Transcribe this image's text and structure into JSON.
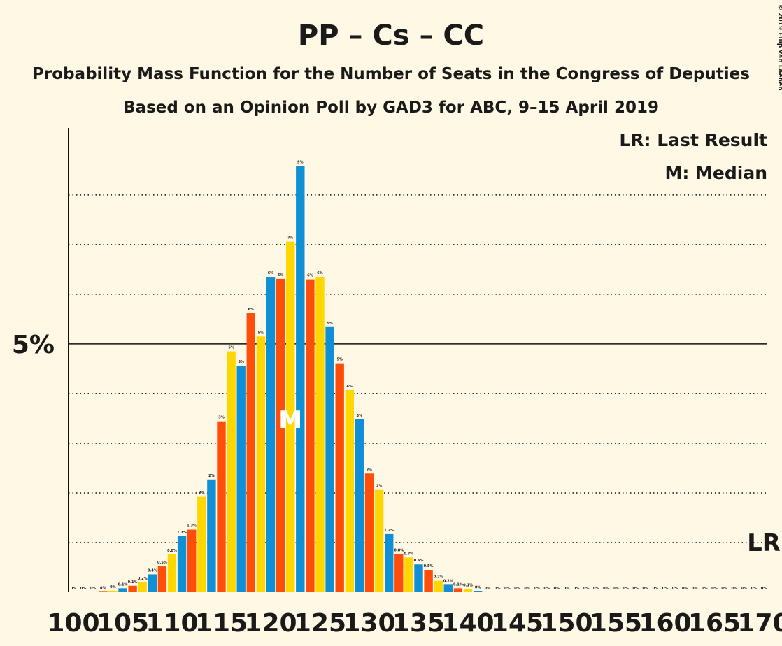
{
  "chart_data": {
    "type": "bar",
    "title": "PP – Cs – CC",
    "subtitle": "Probability Mass Function for the Number of Seats in the Congress of Deputies",
    "subtitle2": "Based on an Opinion Poll by GAD3 for ABC, 9–15 April 2019",
    "copyright": "© 2019 Filip van Laenen",
    "legend": [
      "LR: Last Result",
      "M: Median"
    ],
    "x": [
      100,
      101,
      102,
      103,
      104,
      105,
      106,
      107,
      108,
      109,
      110,
      111,
      112,
      113,
      114,
      115,
      116,
      117,
      118,
      119,
      120,
      121,
      122,
      123,
      124,
      125,
      126,
      127,
      128,
      129,
      130,
      131,
      132,
      133,
      134,
      135,
      136,
      137,
      138,
      139,
      140,
      141,
      142,
      143,
      144,
      145,
      146,
      147,
      148,
      149,
      150,
      151,
      152,
      153,
      154,
      155,
      156,
      157,
      158,
      159,
      160,
      161,
      162,
      163,
      164,
      165,
      166,
      167,
      168,
      169,
      170
    ],
    "values": [
      0,
      0,
      0,
      0.01,
      0.03,
      0.08,
      0.13,
      0.2,
      0.36,
      0.52,
      0.76,
      1.13,
      1.26,
      1.92,
      2.27,
      3.44,
      4.85,
      4.56,
      5.62,
      5.15,
      6.35,
      6.31,
      7.06,
      8.58,
      6.3,
      6.35,
      5.34,
      4.61,
      4.07,
      3.48,
      2.39,
      2.06,
      1.17,
      0.77,
      0.7,
      0.56,
      0.45,
      0.23,
      0.15,
      0.08,
      0.06,
      0.02,
      0,
      0,
      0,
      0,
      0,
      0,
      0,
      0,
      0,
      0,
      0,
      0,
      0,
      0,
      0,
      0,
      0,
      0,
      0,
      0,
      0,
      0,
      0,
      0,
      0,
      0,
      0,
      0,
      0
    ],
    "value_labels": [
      "0%",
      "0%",
      "0%",
      "0%",
      "0%",
      "0.1%",
      "0.1%",
      "0.2%",
      "0.4%",
      "0.5%",
      "0.8%",
      "1.1%",
      "1.3%",
      "2%",
      "2%",
      "3%",
      "5%",
      "5%",
      "6%",
      "5%",
      "6%",
      "6%",
      "7%",
      "9%",
      "6%",
      "6%",
      "5%",
      "5%",
      "4%",
      "3%",
      "2%",
      "2%",
      "1.2%",
      "0.8%",
      "0.7%",
      "0.6%",
      "0.5%",
      "0.2%",
      "0.2%",
      "0.1%",
      "0.1%",
      "0%",
      "0%",
      "0%",
      "0%",
      "0%",
      "0%",
      "0%",
      "0%",
      "0%",
      "0%",
      "0%",
      "0%",
      "0%",
      "0%",
      "0%",
      "0%",
      "0%",
      "0%",
      "0%",
      "0%",
      "0%",
      "0%",
      "0%",
      "0%",
      "0%",
      "0%",
      "0%",
      "0%",
      "0%",
      "0%"
    ],
    "colors": [
      "#0F8FD6",
      "#FF4E0A",
      "#FFD700"
    ],
    "median": 122,
    "median_label": "M",
    "last_result": 170,
    "last_result_label": "LR",
    "xlim": [
      99.5,
      170.5
    ],
    "xticks": [
      100,
      105,
      110,
      115,
      120,
      125,
      130,
      135,
      140,
      145,
      150,
      155,
      160,
      165,
      170
    ],
    "ylim": [
      0,
      9.35
    ],
    "yticks": [
      {
        "value": 5,
        "label": "5%"
      }
    ],
    "minor_grid": [
      1,
      2,
      3,
      4,
      6,
      7,
      8
    ]
  }
}
